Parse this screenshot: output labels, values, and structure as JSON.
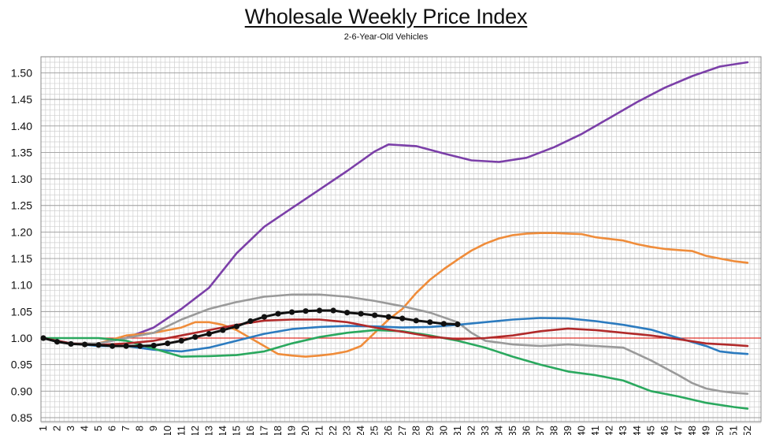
{
  "chart_data": {
    "type": "line",
    "title": "Wholesale Weekly Price Index",
    "subtitle": "2-6-Year-Old Vehicles",
    "xlabel": "",
    "ylabel": "",
    "ylim": [
      0.85,
      1.52
    ],
    "xlim": [
      1,
      52
    ],
    "grid": true,
    "legend": "none",
    "yticks": [
      "0.85",
      "0.90",
      "0.95",
      "1.00",
      "1.05",
      "1.10",
      "1.15",
      "1.20",
      "1.25",
      "1.30",
      "1.35",
      "1.40",
      "1.45",
      "1.50"
    ],
    "xticks": [
      "1",
      "2",
      "3",
      "4",
      "5",
      "6",
      "7",
      "8",
      "9",
      "10",
      "11",
      "12",
      "13",
      "14",
      "15",
      "16",
      "17",
      "18",
      "19",
      "20",
      "21",
      "22",
      "23",
      "24",
      "25",
      "26",
      "27",
      "28",
      "29",
      "30",
      "31",
      "32",
      "33",
      "34",
      "35",
      "36",
      "37",
      "38",
      "39",
      "40",
      "41",
      "42",
      "43",
      "44",
      "45",
      "46",
      "47",
      "48",
      "49",
      "50",
      "51",
      "52"
    ],
    "baseline": {
      "value": 1.0,
      "color": "#e0352b"
    },
    "series": [
      {
        "color": "#7b3fa8",
        "markers": false,
        "x": [
          1,
          3,
          5,
          7,
          9,
          11,
          13,
          15,
          17,
          19,
          21,
          23,
          25,
          26,
          28,
          30,
          32,
          34,
          36,
          38,
          40,
          42,
          44,
          46,
          48,
          50,
          52
        ],
        "values": [
          1.0,
          0.99,
          0.99,
          1.0,
          1.02,
          1.055,
          1.095,
          1.16,
          1.21,
          1.245,
          1.28,
          1.315,
          1.352,
          1.365,
          1.362,
          1.348,
          1.335,
          1.332,
          1.34,
          1.36,
          1.385,
          1.415,
          1.445,
          1.472,
          1.494,
          1.512,
          1.52
        ]
      },
      {
        "color": "#ef8c3a",
        "markers": false,
        "x": [
          1,
          3,
          5,
          7,
          9,
          11,
          12,
          13,
          14,
          15,
          16,
          17,
          18,
          19,
          20,
          21,
          22,
          23,
          24,
          25,
          26,
          27,
          28,
          29,
          30,
          31,
          32,
          33,
          34,
          35,
          36,
          37,
          38,
          39,
          40,
          41,
          42,
          43,
          44,
          45,
          46,
          47,
          48,
          49,
          50,
          51,
          52
        ],
        "values": [
          1.0,
          0.99,
          0.99,
          1.005,
          1.01,
          1.02,
          1.03,
          1.03,
          1.025,
          1.015,
          1.0,
          0.985,
          0.97,
          0.967,
          0.965,
          0.967,
          0.97,
          0.975,
          0.985,
          1.01,
          1.035,
          1.055,
          1.085,
          1.11,
          1.13,
          1.148,
          1.165,
          1.178,
          1.188,
          1.194,
          1.197,
          1.198,
          1.198,
          1.197,
          1.196,
          1.19,
          1.187,
          1.184,
          1.177,
          1.172,
          1.168,
          1.166,
          1.164,
          1.155,
          1.15,
          1.145,
          1.142
        ]
      },
      {
        "color": "#9a9a9a",
        "markers": false,
        "x": [
          1,
          3,
          5,
          7,
          9,
          11,
          13,
          15,
          17,
          19,
          21,
          23,
          25,
          27,
          29,
          31,
          32,
          33,
          35,
          37,
          39,
          41,
          43,
          45,
          47,
          48,
          49,
          50,
          51,
          52
        ],
        "values": [
          1.0,
          0.99,
          0.99,
          1.0,
          1.01,
          1.035,
          1.055,
          1.068,
          1.078,
          1.082,
          1.082,
          1.078,
          1.07,
          1.06,
          1.048,
          1.03,
          1.01,
          0.995,
          0.988,
          0.985,
          0.988,
          0.985,
          0.982,
          0.958,
          0.93,
          0.915,
          0.905,
          0.9,
          0.897,
          0.895
        ]
      },
      {
        "color": "#2c7bbf",
        "markers": false,
        "x": [
          1,
          3,
          5,
          7,
          9,
          11,
          13,
          15,
          17,
          19,
          21,
          23,
          25,
          27,
          29,
          31,
          33,
          35,
          37,
          39,
          41,
          43,
          45,
          47,
          49,
          50,
          51,
          52
        ],
        "values": [
          1.0,
          0.99,
          0.985,
          0.985,
          0.978,
          0.975,
          0.982,
          0.995,
          1.008,
          1.017,
          1.021,
          1.023,
          1.022,
          1.02,
          1.021,
          1.025,
          1.03,
          1.035,
          1.038,
          1.037,
          1.032,
          1.025,
          1.016,
          1.0,
          0.985,
          0.975,
          0.972,
          0.97
        ]
      },
      {
        "color": "#2aa85e",
        "markers": false,
        "x": [
          1,
          3,
          5,
          7,
          9,
          11,
          13,
          15,
          17,
          19,
          21,
          23,
          25,
          27,
          29,
          31,
          33,
          35,
          37,
          39,
          41,
          43,
          45,
          47,
          49,
          51,
          52
        ],
        "values": [
          1.0,
          1.0,
          1.0,
          0.995,
          0.98,
          0.965,
          0.966,
          0.968,
          0.975,
          0.99,
          1.002,
          1.01,
          1.015,
          1.013,
          1.005,
          0.995,
          0.982,
          0.965,
          0.95,
          0.937,
          0.93,
          0.92,
          0.9,
          0.89,
          0.878,
          0.87,
          0.867
        ]
      },
      {
        "color": "#b12a2a",
        "markers": false,
        "x": [
          1,
          3,
          5,
          7,
          9,
          11,
          13,
          15,
          17,
          19,
          21,
          23,
          25,
          27,
          29,
          31,
          33,
          35,
          37,
          39,
          41,
          43,
          45,
          47,
          49,
          51,
          52
        ],
        "values": [
          1.0,
          0.99,
          0.987,
          0.99,
          0.995,
          1.005,
          1.015,
          1.025,
          1.033,
          1.035,
          1.035,
          1.03,
          1.02,
          1.012,
          1.003,
          0.998,
          1.0,
          1.005,
          1.013,
          1.018,
          1.015,
          1.01,
          1.005,
          0.998,
          0.99,
          0.987,
          0.985
        ]
      },
      {
        "color": "#111111",
        "markers": true,
        "x": [
          1,
          2,
          3,
          4,
          5,
          6,
          7,
          8,
          9,
          10,
          11,
          12,
          13,
          14,
          15,
          16,
          17,
          18,
          19,
          20,
          21,
          22,
          23,
          24,
          25,
          26,
          27,
          28,
          29,
          30,
          31
        ],
        "values": [
          1.0,
          0.993,
          0.989,
          0.988,
          0.987,
          0.985,
          0.985,
          0.985,
          0.986,
          0.99,
          0.995,
          1.002,
          1.008,
          1.015,
          1.022,
          1.032,
          1.04,
          1.046,
          1.049,
          1.051,
          1.052,
          1.052,
          1.048,
          1.046,
          1.043,
          1.04,
          1.037,
          1.033,
          1.03,
          1.027,
          1.026
        ]
      }
    ]
  }
}
